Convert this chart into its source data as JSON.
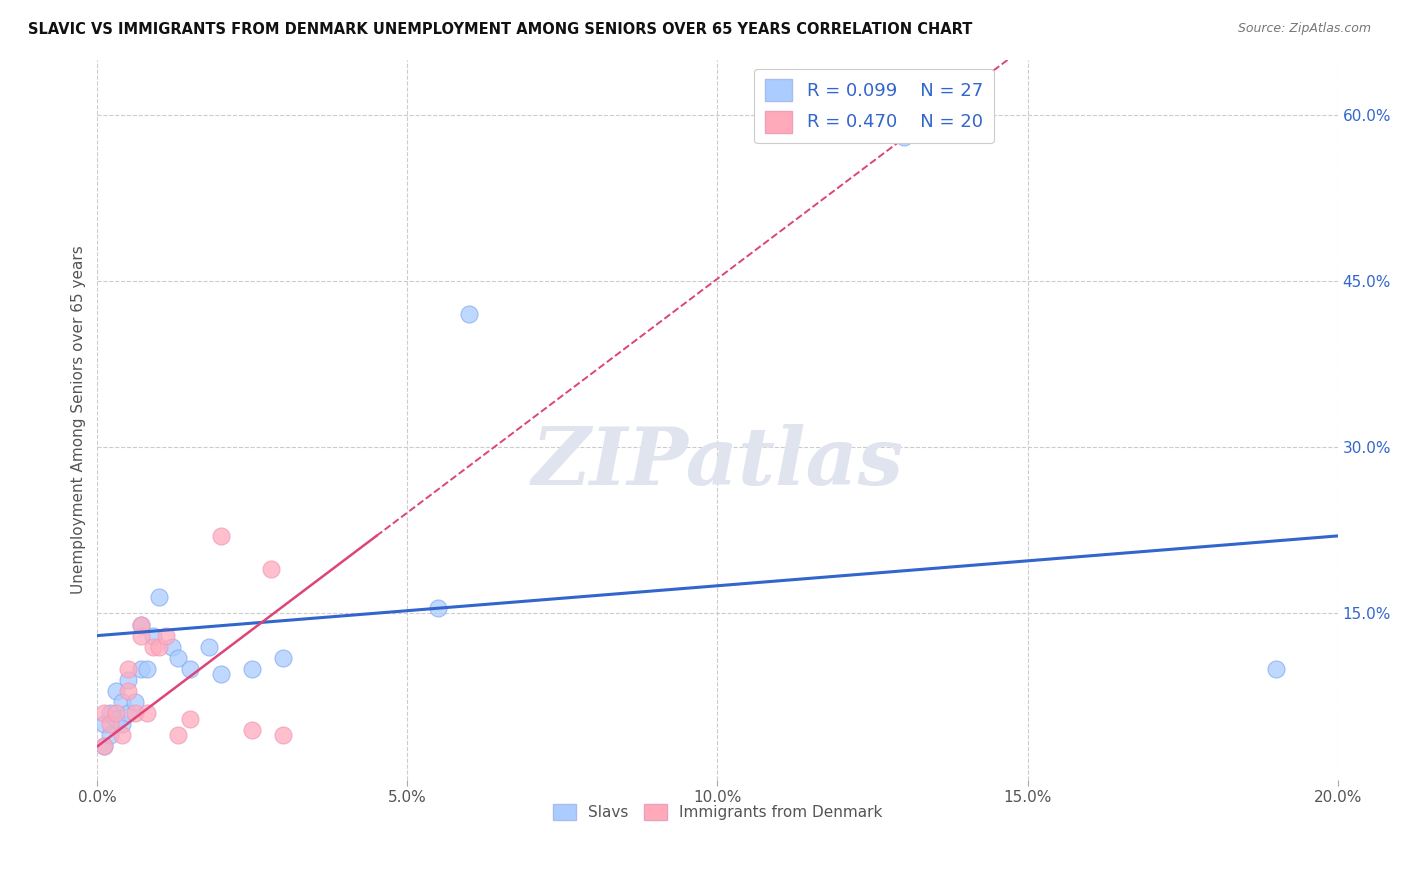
{
  "title": "SLAVIC VS IMMIGRANTS FROM DENMARK UNEMPLOYMENT AMONG SENIORS OVER 65 YEARS CORRELATION CHART",
  "source": "Source: ZipAtlas.com",
  "ylabel": "Unemployment Among Seniors over 65 years",
  "xlim": [
    0.0,
    0.2
  ],
  "ylim": [
    0.0,
    0.65
  ],
  "xtick_labels": [
    "0.0%",
    "5.0%",
    "10.0%",
    "15.0%",
    "20.0%"
  ],
  "xtick_vals": [
    0.0,
    0.05,
    0.1,
    0.15,
    0.2
  ],
  "ytick_labels": [
    "15.0%",
    "30.0%",
    "45.0%",
    "60.0%"
  ],
  "ytick_vals": [
    0.15,
    0.3,
    0.45,
    0.6
  ],
  "legend_label1": "Slavs",
  "legend_label2": "Immigrants from Denmark",
  "R1": 0.099,
  "N1": 27,
  "R2": 0.47,
  "N2": 20,
  "slavs_color": "#aaccff",
  "denmark_color": "#ffaabb",
  "trendline1_color": "#3366cc",
  "trendline2_color": "#dd4477",
  "watermark_text": "ZIPatlas",
  "background_color": "#ffffff",
  "slavs_x": [
    0.001,
    0.001,
    0.002,
    0.002,
    0.003,
    0.003,
    0.004,
    0.004,
    0.005,
    0.005,
    0.006,
    0.007,
    0.007,
    0.008,
    0.009,
    0.01,
    0.012,
    0.013,
    0.015,
    0.018,
    0.02,
    0.025,
    0.03,
    0.055,
    0.06,
    0.13,
    0.19
  ],
  "slavs_y": [
    0.03,
    0.05,
    0.04,
    0.06,
    0.055,
    0.08,
    0.05,
    0.07,
    0.06,
    0.09,
    0.07,
    0.1,
    0.14,
    0.1,
    0.13,
    0.165,
    0.12,
    0.11,
    0.1,
    0.12,
    0.095,
    0.1,
    0.11,
    0.155,
    0.42,
    0.58,
    0.1
  ],
  "denmark_x": [
    0.001,
    0.001,
    0.002,
    0.003,
    0.004,
    0.005,
    0.005,
    0.006,
    0.007,
    0.007,
    0.008,
    0.009,
    0.01,
    0.011,
    0.013,
    0.015,
    0.02,
    0.025,
    0.028,
    0.03
  ],
  "denmark_y": [
    0.03,
    0.06,
    0.05,
    0.06,
    0.04,
    0.08,
    0.1,
    0.06,
    0.13,
    0.14,
    0.06,
    0.12,
    0.12,
    0.13,
    0.04,
    0.055,
    0.22,
    0.045,
    0.19,
    0.04
  ]
}
